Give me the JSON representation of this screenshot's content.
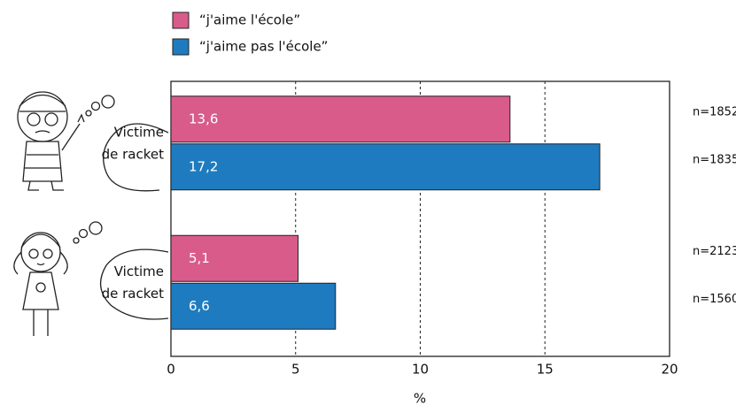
{
  "chart_data": {
    "type": "bar",
    "orientation": "horizontal",
    "categories": [
      [
        "Victime",
        "de racket"
      ],
      [
        "Victime",
        "de racket"
      ]
    ],
    "series": [
      {
        "name": "“j'aime l'école”",
        "color": "#d95b8a",
        "values": [
          13.6,
          5.1
        ],
        "value_labels": [
          "13,6",
          "5,1"
        ],
        "sample_sizes": [
          "n=1852",
          "n=2123"
        ]
      },
      {
        "name": "“j'aime pas l'école”",
        "color": "#1f7bbf",
        "values": [
          17.2,
          6.6
        ],
        "value_labels": [
          "17,2",
          "6,6"
        ],
        "sample_sizes": [
          "n=1835",
          "n=1560"
        ]
      }
    ],
    "xlabel": "%",
    "xlim": [
      0,
      20
    ],
    "xticks": [
      0,
      5,
      10,
      15,
      20
    ],
    "grid": true
  }
}
